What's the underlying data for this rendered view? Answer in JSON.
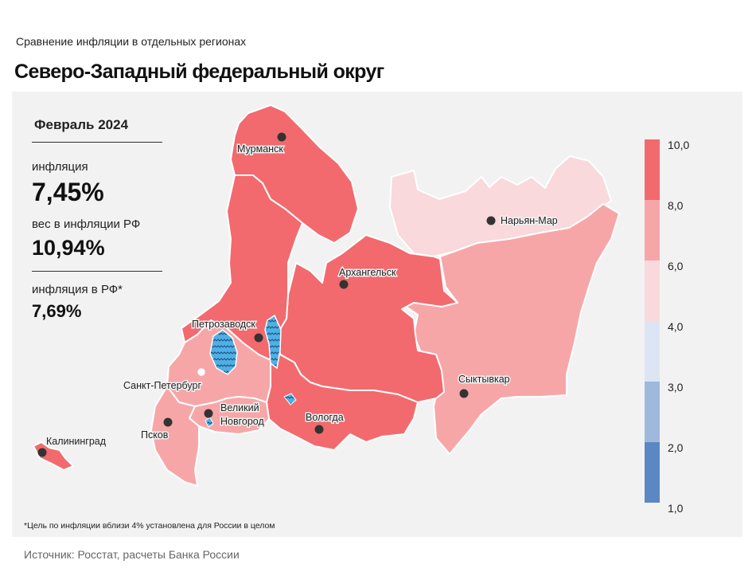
{
  "header": {
    "supertitle": "Сравнение  инфляции  в отдельных  регионах",
    "title": "Северо-Западный федеральный округ"
  },
  "info": {
    "period": "Февраль 2024",
    "inflation_label": "инфляция",
    "inflation_value": "7,45%",
    "weight_label": "вес в инфляции  РФ",
    "weight_value": "10,94%",
    "rf_label": "инфляция  в РФ*",
    "rf_value": "7,69%"
  },
  "footnote": "*Цель по инфляции вблизи 4% установлена для России в целом",
  "source": "Источник: Росстат, расчеты Банка России",
  "legend": {
    "ticks": [
      "10,0",
      "8,0",
      "6,0",
      "4,0",
      "3,0",
      "2,0",
      "1,0"
    ],
    "bins": [
      {
        "from": 8.0,
        "to": 10.0,
        "color": "#f26a6e"
      },
      {
        "from": 6.0,
        "to": 8.0,
        "color": "#f7a6a8"
      },
      {
        "from": 4.0,
        "to": 6.0,
        "color": "#f9d9db"
      },
      {
        "from": 3.0,
        "to": 4.0,
        "color": "#dbe5f4"
      },
      {
        "from": 2.0,
        "to": 3.0,
        "color": "#9fb9dc"
      },
      {
        "from": 1.0,
        "to": 2.0,
        "color": "#5b88c4"
      }
    ]
  },
  "cities": [
    {
      "name": "Мурманск"
    },
    {
      "name": "Архангельск"
    },
    {
      "name": "Нарьян-Мар"
    },
    {
      "name": "Петрозаводск"
    },
    {
      "name": "Санкт-Петербург"
    },
    {
      "name": "Великий"
    },
    {
      "name": "Новгород"
    },
    {
      "name": "Вологда"
    },
    {
      "name": "Сыктывкар"
    },
    {
      "name": "Псков"
    },
    {
      "name": "Калининград"
    }
  ],
  "colors": {
    "high": "#f26a6e",
    "mid": "#f7a6a8",
    "low": "#f9d9db",
    "lake": "#4fb0e6",
    "panel": "#f2f2f2"
  }
}
